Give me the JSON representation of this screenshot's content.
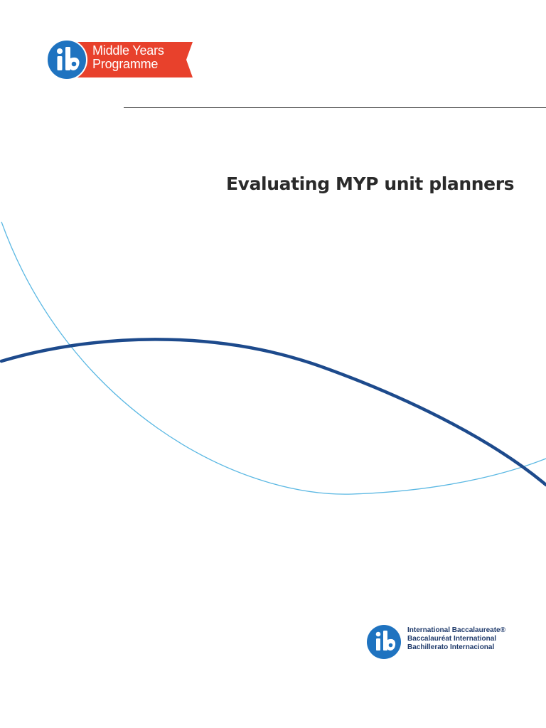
{
  "header": {
    "programme_logo": {
      "lines": [
        "Middle Years",
        "Programme"
      ],
      "mark": "ib",
      "colors": {
        "ribbon": "#e8412c",
        "circle": "#1f73c0"
      }
    }
  },
  "main": {
    "title": "Evaluating MYP unit planners"
  },
  "decoration": {
    "thin_curve_color": "#5bb8e3",
    "thick_curve_color": "#1d4a8c"
  },
  "footer": {
    "ib_logo": {
      "mark": "ib",
      "names": [
        "International Baccalaureate®",
        "Baccalauréat International",
        "Bachillerato Internacional"
      ],
      "colors": {
        "circle": "#1f73c0",
        "text": "#1f3a6b"
      }
    }
  }
}
